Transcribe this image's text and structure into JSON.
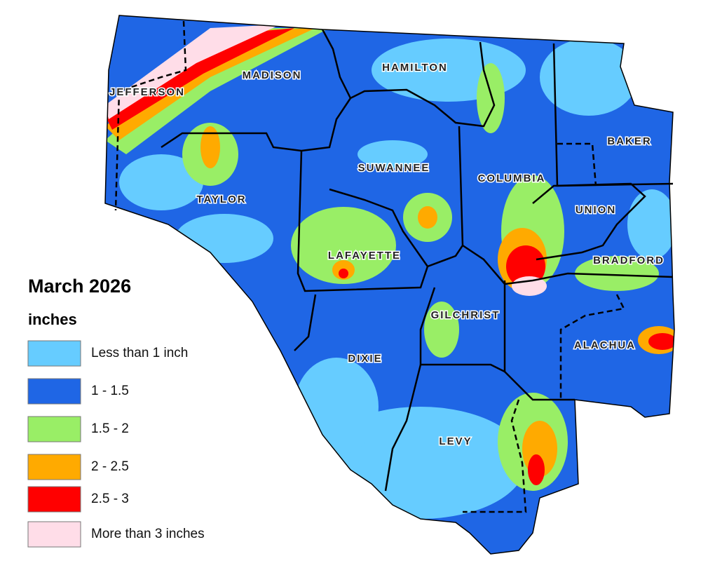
{
  "title": "March 2026",
  "legend": {
    "unit": "inches",
    "items": [
      {
        "label": "Less than 1 inch",
        "color": "#66ccff"
      },
      {
        "label": "1 - 1.5",
        "color": "#1f66e5"
      },
      {
        "label": "1.5 - 2",
        "color": "#99ee66"
      },
      {
        "label": "2 - 2.5",
        "color": "#ffaa00"
      },
      {
        "label": "2.5 - 3",
        "color": "#ff0000"
      },
      {
        "label": "More than 3 inches",
        "color": "#ffdde8"
      }
    ]
  },
  "counties": [
    "JEFFERSON",
    "MADISON",
    "HAMILTON",
    "SUWANNEE",
    "COLUMBIA",
    "BAKER",
    "TAYLOR",
    "UNION",
    "LAFAYETTE",
    "BRADFORD",
    "GILCHRIST",
    "ALACHUA",
    "DIXIE",
    "LEVY"
  ]
}
